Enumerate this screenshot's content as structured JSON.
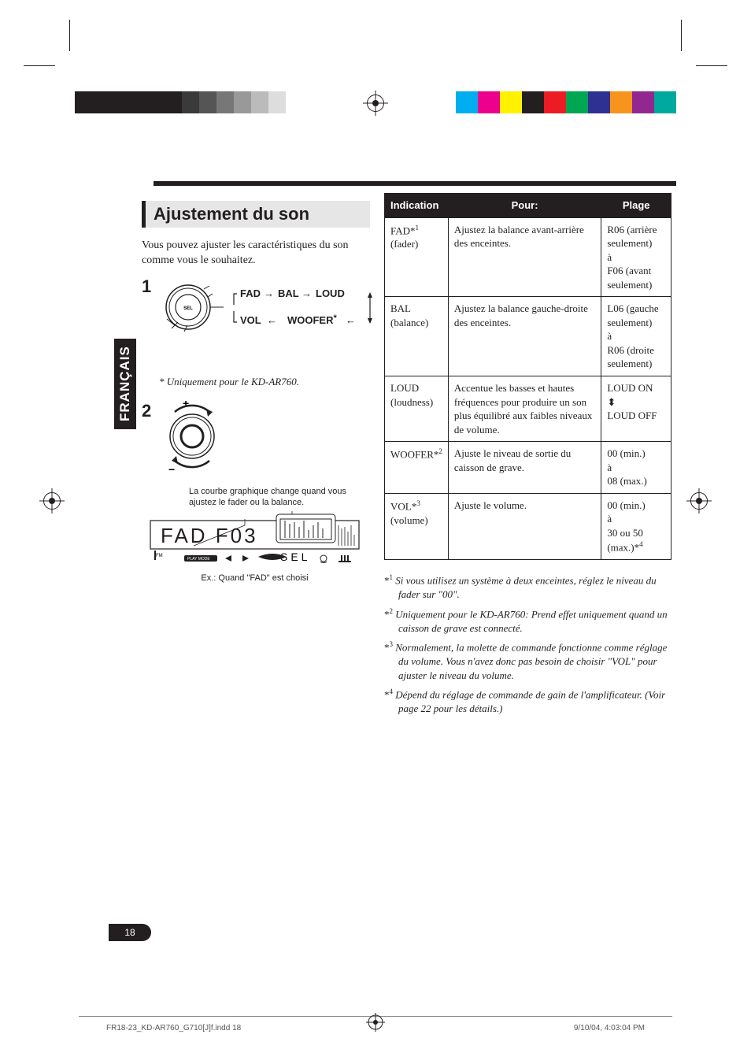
{
  "crop_colors_left": [
    "#231f20",
    "#ffffff",
    "#231f20",
    "#ffffff",
    "#231f20",
    "#ffffff",
    "#231f20",
    "#ffffff",
    "#231f20",
    "#ffffff"
  ],
  "crop_gray_left": [
    "#ffffff",
    "#e6e6e6",
    "#cccccc",
    "#b3b3b3",
    "#999999",
    "#808080"
  ],
  "crop_colors_right": [
    "#00aeef",
    "#ec008c",
    "#fff200",
    "#231f20",
    "#ed1c24",
    "#00a651",
    "#2e3192",
    "#f7941d",
    "#92278f",
    "#00a99d"
  ],
  "section_title": "Ajustement du son",
  "intro": "Vous pouvez ajuster les caractéristiques du son comme vous le souhaitez.",
  "step_labels": {
    "one": "1",
    "two": "2"
  },
  "flow": {
    "fad": "FAD",
    "bal": "BAL",
    "loud": "LOUD",
    "vol": "VOL",
    "woofer": "WOOFER"
  },
  "note_italic": "* Uniquement pour le KD-AR760.",
  "curve_note": "La courbe graphique change quand vous ajustez le fader ou la balance.",
  "display_caption": "Ex.: Quand \"FAD\" est choisi",
  "side_tab": "FRANÇAIS",
  "table": {
    "headers": [
      "Indication",
      "Pour:",
      "Plage"
    ],
    "rows": [
      {
        "ind": "FAD*1\n(fader)",
        "pour": "Ajustez la balance avant-arrière des enceintes.",
        "plage": "R06 (arrière seulement)\nà\nF06 (avant seulement)"
      },
      {
        "ind": "BAL\n(balance)",
        "pour": "Ajustez la balance gauche-droite des enceintes.",
        "plage": "L06 (gauche seulement)\nà\nR06 (droite seulement)"
      },
      {
        "ind": "LOUD\n(loudness)",
        "pour": "Accentue les basses et hautes fréquences pour produire un son plus équilibré aux faibles niveaux de volume.",
        "plage": "LOUD ON\n↕\nLOUD OFF"
      },
      {
        "ind": "WOOFER*2",
        "pour": "Ajuste le niveau de sortie du caisson de grave.",
        "plage": "00 (min.)\nà\n08 (max.)"
      },
      {
        "ind": "VOL*3\n(volume)",
        "pour": "Ajuste le volume.",
        "plage": "00 (min.)\nà\n30 ou 50 (max.)*4"
      }
    ]
  },
  "footnotes": [
    {
      "mark": "*1",
      "text": "Si vous utilisez un système à deux enceintes, réglez le niveau du fader sur \"00\"."
    },
    {
      "mark": "*2",
      "text": "Uniquement pour le KD-AR760: Prend effet uniquement quand un caisson de grave est connecté."
    },
    {
      "mark": "*3",
      "text": "Normalement, la molette de commande fonctionne comme réglage du volume. Vous n'avez donc pas besoin de choisir \"VOL\" pour ajuster le niveau du volume."
    },
    {
      "mark": "*4",
      "text": "Dépend du réglage de commande de gain de l'amplificateur. (Voir page 22 pour les détails.)"
    }
  ],
  "page_number": "18",
  "footer": {
    "left": "FR18-23_KD-AR760_G710[J]f.indd   18",
    "right": "9/10/04, 4:03:04 PM"
  },
  "display_text": {
    "main": "FAD  F03",
    "sub": "SEL"
  },
  "colors": {
    "black": "#231f20",
    "header_bg": "#231f20",
    "section_bg": "#e6e6e6"
  }
}
